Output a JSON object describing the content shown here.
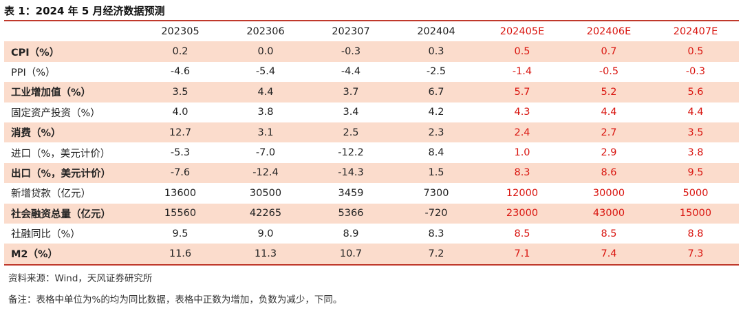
{
  "title": "表 1：2024 年 5 月经济数据预测",
  "columns": [
    "",
    "202305",
    "202306",
    "202307",
    "202404",
    "202405E",
    "202406E",
    "202407E"
  ],
  "estimate_columns": [
    5,
    6,
    7
  ],
  "colors": {
    "accent_red": "#d9150f",
    "rule_red": "#c0392b",
    "row_shade": "#fbdccc"
  },
  "rows": [
    {
      "label": "CPI（%）",
      "shaded": true,
      "values": [
        "0.2",
        "0.0",
        "-0.3",
        "0.3",
        "0.5",
        "0.7",
        "0.5"
      ]
    },
    {
      "label": "PPI（%）",
      "shaded": false,
      "values": [
        "-4.6",
        "-5.4",
        "-4.4",
        "-2.5",
        "-1.4",
        "-0.5",
        "-0.3"
      ]
    },
    {
      "label": "工业增加值（%）",
      "shaded": true,
      "values": [
        "3.5",
        "4.4",
        "3.7",
        "6.7",
        "5.7",
        "5.2",
        "5.6"
      ]
    },
    {
      "label": "固定资产投资（%）",
      "shaded": false,
      "values": [
        "4.0",
        "3.8",
        "3.4",
        "4.2",
        "4.3",
        "4.4",
        "4.4"
      ]
    },
    {
      "label": "消费（%）",
      "shaded": true,
      "values": [
        "12.7",
        "3.1",
        "2.5",
        "2.3",
        "2.4",
        "2.7",
        "3.5"
      ]
    },
    {
      "label": "进口（%，美元计价）",
      "shaded": false,
      "values": [
        "-5.3",
        "-7.0",
        "-12.2",
        "8.4",
        "1.0",
        "2.9",
        "3.8"
      ]
    },
    {
      "label": "出口（%，美元计价）",
      "shaded": true,
      "values": [
        "-7.6",
        "-12.4",
        "-14.3",
        "1.5",
        "8.3",
        "8.6",
        "9.5"
      ]
    },
    {
      "label": "新增贷款（亿元）",
      "shaded": false,
      "values": [
        "13600",
        "30500",
        "3459",
        "7300",
        "12000",
        "30000",
        "5000"
      ]
    },
    {
      "label": "社会融资总量（亿元）",
      "shaded": true,
      "values": [
        "15560",
        "42265",
        "5366",
        "-720",
        "23000",
        "43000",
        "15000"
      ]
    },
    {
      "label": "社融同比（%）",
      "shaded": false,
      "values": [
        "9.5",
        "9.0",
        "8.9",
        "8.3",
        "8.5",
        "8.5",
        "8.8"
      ]
    },
    {
      "label": "M2（%）",
      "shaded": true,
      "values": [
        "11.6",
        "11.3",
        "10.7",
        "7.2",
        "7.1",
        "7.4",
        "7.3"
      ]
    }
  ],
  "source": "资料来源：Wind，天风证券研究所",
  "remark": "备注：表格中单位为%的均为同比数据，表格中正数为增加，负数为减少，下同。",
  "chart_data": {
    "type": "table",
    "title": "表 1：2024 年 5 月经济数据预测",
    "columns": [
      "202305",
      "202306",
      "202307",
      "202404",
      "202405E",
      "202406E",
      "202407E"
    ],
    "series": [
      {
        "name": "CPI（%）",
        "values": [
          0.2,
          0.0,
          -0.3,
          0.3,
          0.5,
          0.7,
          0.5
        ]
      },
      {
        "name": "PPI（%）",
        "values": [
          -4.6,
          -5.4,
          -4.4,
          -2.5,
          -1.4,
          -0.5,
          -0.3
        ]
      },
      {
        "name": "工业增加值（%）",
        "values": [
          3.5,
          4.4,
          3.7,
          6.7,
          5.7,
          5.2,
          5.6
        ]
      },
      {
        "name": "固定资产投资（%）",
        "values": [
          4.0,
          3.8,
          3.4,
          4.2,
          4.3,
          4.4,
          4.4
        ]
      },
      {
        "name": "消费（%）",
        "values": [
          12.7,
          3.1,
          2.5,
          2.3,
          2.4,
          2.7,
          3.5
        ]
      },
      {
        "name": "进口（%，美元计价）",
        "values": [
          -5.3,
          -7.0,
          -12.2,
          8.4,
          1.0,
          2.9,
          3.8
        ]
      },
      {
        "name": "出口（%，美元计价）",
        "values": [
          -7.6,
          -12.4,
          -14.3,
          1.5,
          8.3,
          8.6,
          9.5
        ]
      },
      {
        "name": "新增贷款（亿元）",
        "values": [
          13600,
          30500,
          3459,
          7300,
          12000,
          30000,
          5000
        ]
      },
      {
        "name": "社会融资总量（亿元）",
        "values": [
          15560,
          42265,
          5366,
          -720,
          23000,
          43000,
          15000
        ]
      },
      {
        "name": "社融同比（%）",
        "values": [
          9.5,
          9.0,
          8.9,
          8.3,
          8.5,
          8.5,
          8.8
        ]
      },
      {
        "name": "M2（%）",
        "values": [
          11.6,
          11.3,
          10.7,
          7.2,
          7.1,
          7.4,
          7.3
        ]
      }
    ]
  }
}
